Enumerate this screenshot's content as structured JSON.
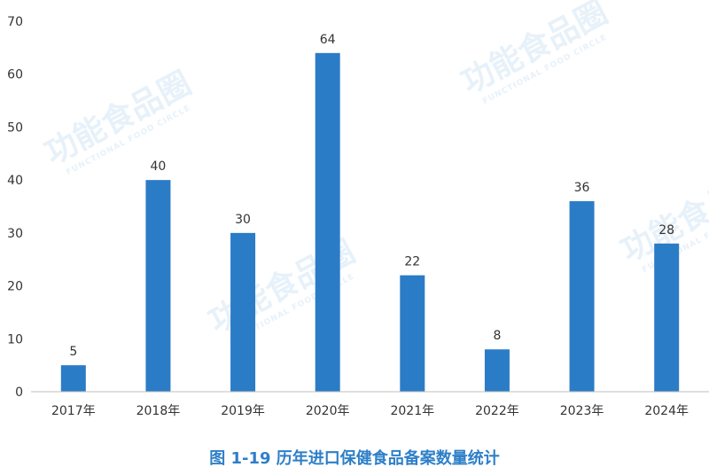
{
  "caption": "图 1-19 历年进口保健食品备案数量统计",
  "watermark": {
    "text": "功能食品圈",
    "subtext": "FUNCTIONAL FOOD CIRCLE"
  },
  "colors": {
    "bar": "#2b7cc6",
    "axis": "#bfbfbf",
    "text": "#333333",
    "caption": "#2e7fc8"
  },
  "chart_data": {
    "type": "bar",
    "title": "",
    "xlabel": "",
    "ylabel": "",
    "categories": [
      "2017年",
      "2018年",
      "2019年",
      "2020年",
      "2021年",
      "2022年",
      "2023年",
      "2024年"
    ],
    "values": [
      5,
      40,
      30,
      64,
      22,
      8,
      36,
      28
    ],
    "data_labels": [
      "5",
      "40",
      "30",
      "64",
      "22",
      "8",
      "36",
      "28"
    ],
    "ylim": [
      0,
      70
    ],
    "yticks": [
      "0",
      "10",
      "20",
      "30",
      "40",
      "50",
      "60",
      "70"
    ],
    "grid": false,
    "legend": "none"
  }
}
